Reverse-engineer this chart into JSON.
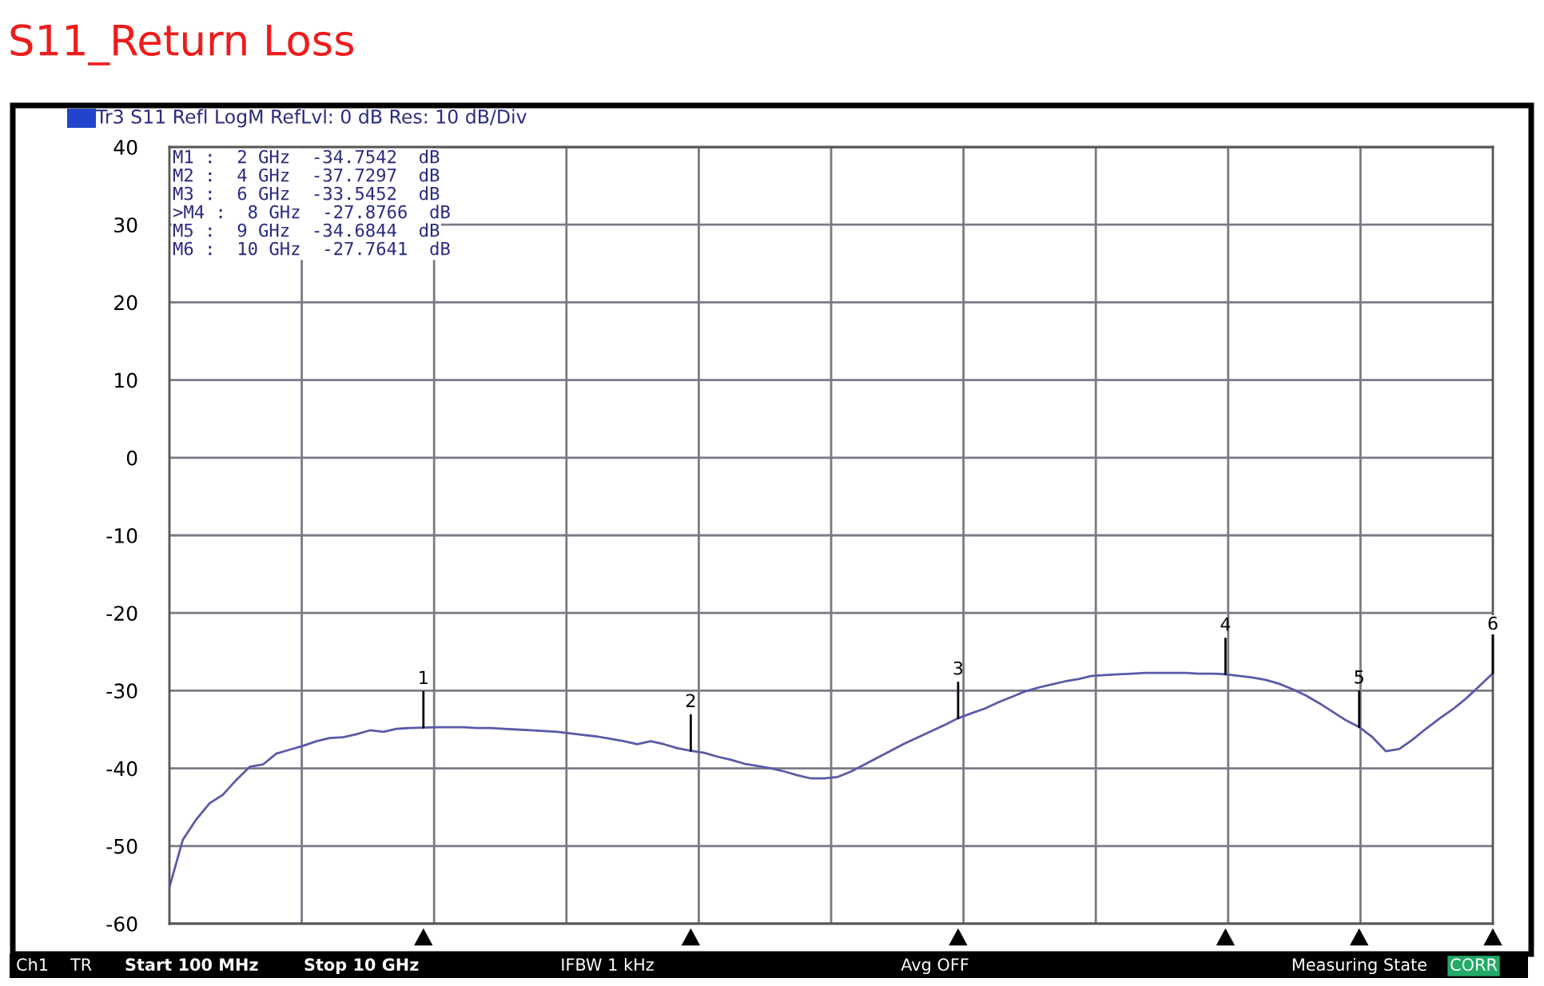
{
  "chart_data": {
    "type": "line",
    "title": "S11_Return Loss",
    "categories": [
      null,
      null,
      null,
      null,
      null,
      null,
      null,
      null,
      null,
      null,
      null,
      null,
      null,
      null,
      null,
      null,
      null,
      null,
      null,
      null,
      null,
      null,
      null,
      null,
      null,
      null,
      null,
      null,
      null,
      null,
      null,
      null,
      null,
      null,
      null,
      null,
      null,
      null,
      null,
      null,
      null,
      null,
      null,
      null,
      null,
      null,
      null,
      null,
      null,
      null,
      null,
      null,
      null,
      null,
      null,
      null,
      null,
      null,
      null,
      null,
      null,
      null,
      null,
      null,
      null,
      null,
      null,
      null,
      null,
      null,
      null,
      null,
      null,
      null,
      null,
      null,
      null,
      null,
      null,
      null,
      null,
      null,
      null,
      null,
      null,
      null,
      null,
      null,
      null,
      null,
      null,
      null,
      null,
      null,
      null,
      null,
      null,
      null,
      null,
      null
    ],
    "series": [
      {
        "color": "#5a5aa8",
        "values": [
          -55.3,
          -49.2,
          -46.6,
          -44.5,
          -43.4,
          -41.5,
          -39.8,
          -39.5,
          -38.1,
          -37.6,
          -37.1,
          -36.5,
          -36.1,
          -36.0,
          -35.6,
          -35.1,
          -35.3,
          -34.9,
          -34.8,
          -34.7542,
          -34.7,
          -34.7,
          -34.7,
          -34.8,
          -34.8,
          -34.9,
          -35.0,
          -35.1,
          -35.2,
          -35.3,
          -35.5,
          -35.7,
          -35.9,
          -36.2,
          -36.5,
          -36.9,
          -36.5,
          -36.9,
          -37.4,
          -37.7297,
          -38.0,
          -38.5,
          -38.9,
          -39.4,
          -39.7,
          -40.0,
          -40.4,
          -40.9,
          -41.3,
          -41.3,
          -41.1,
          -40.4,
          -39.5,
          -38.6,
          -37.7,
          -36.8,
          -36.0,
          -35.2,
          -34.4,
          -33.5452,
          -32.9,
          -32.3,
          -31.5,
          -30.8,
          -30.1,
          -29.6,
          -29.2,
          -28.8,
          -28.5,
          -28.1,
          -28.0,
          -27.9,
          -27.8,
          -27.7,
          -27.7,
          -27.7,
          -27.7,
          -27.8,
          -27.8,
          -27.8766,
          -28.1,
          -28.3,
          -28.6,
          -29.1,
          -29.8,
          -30.6,
          -31.6,
          -32.7,
          -33.8,
          -34.6844,
          -36.0,
          -37.8,
          -37.5,
          -36.3,
          -34.9,
          -33.6,
          -32.4,
          -31.0,
          -29.4,
          -27.7641
        ]
      }
    ],
    "ylim": [
      -60,
      40
    ],
    "yticks": [
      -60,
      -50,
      -40,
      -30,
      -20,
      -10,
      0,
      10,
      20,
      30,
      40
    ],
    "grid": true,
    "annotations": [
      "Tr3 S11 Refl LogM RefLvl: 0 dB Res: 10 dB/Div",
      "M1 :  2 GHz  -34.7542  dB",
      "M2 :  4 GHz  -37.7297  dB",
      "M3 :  6 GHz  -33.5452  dB",
      ">M4 :  8 GHz  -27.8766  dB",
      "M5 :  9 GHz  -34.6844  dB",
      "M6 :  10 GHz  -27.7641  dB",
      "Ch1",
      "TR",
      "Start 100 MHz",
      "Stop 10 GHz",
      "IFBW 1 kHz",
      "Avg OFF",
      "Measuring State",
      "CORR",
      {
        "text": "1",
        "y": -34.7542
      },
      {
        "text": "2",
        "y": -37.7297
      },
      {
        "text": "3",
        "y": -33.5452
      },
      {
        "text": "4",
        "y": -27.8766
      },
      {
        "text": "5",
        "y": -34.6844
      },
      {
        "text": "6",
        "y": -27.7641
      }
    ]
  }
}
